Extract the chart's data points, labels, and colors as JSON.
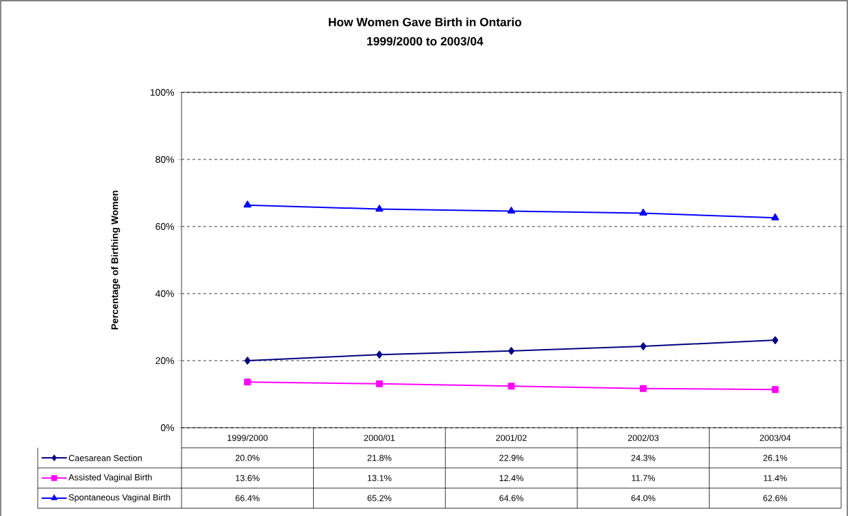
{
  "chart_data": {
    "type": "line",
    "title": "How Women Gave Birth in Ontario",
    "subtitle": "1999/2000 to 2003/04",
    "ylabel": "Percentage of Birthing Women",
    "categories": [
      "1999/2000",
      "2000/01",
      "2001/02",
      "2002/03",
      "2003/04"
    ],
    "series": [
      {
        "name": "Caesarean Section",
        "color": "#000080",
        "marker": "diamond",
        "values": [
          20.0,
          21.8,
          22.9,
          24.3,
          26.1
        ],
        "value_labels": [
          "20.0%",
          "21.8%",
          "22.9%",
          "24.3%",
          "26.1%"
        ]
      },
      {
        "name": "Assisted Vaginal Birth",
        "color": "#ff00ff",
        "marker": "square",
        "values": [
          13.6,
          13.1,
          12.4,
          11.7,
          11.4
        ],
        "value_labels": [
          "13.6%",
          "13.1%",
          "12.4%",
          "11.7%",
          "11.4%"
        ]
      },
      {
        "name": "Spontaneous Vaginal Birth",
        "color": "#0000ff",
        "marker": "triangle",
        "values": [
          66.4,
          65.2,
          64.6,
          64.0,
          62.6
        ],
        "value_labels": [
          "66.4%",
          "65.2%",
          "64.6%",
          "64.0%",
          "62.6%"
        ]
      }
    ],
    "ylim": [
      0,
      100
    ],
    "yticks": [
      {
        "value": 0,
        "label": "0%"
      },
      {
        "value": 20,
        "label": "20%"
      },
      {
        "value": 40,
        "label": "40%"
      },
      {
        "value": 60,
        "label": "60%"
      },
      {
        "value": 80,
        "label": "80%"
      },
      {
        "value": 100,
        "label": "100%"
      }
    ],
    "grid": "y",
    "legend": "bottom",
    "line_style": "solid"
  }
}
